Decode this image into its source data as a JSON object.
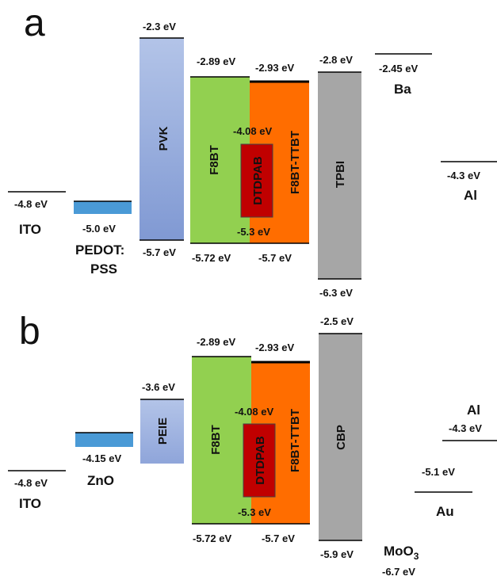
{
  "panels": [
    {
      "letter": "a",
      "levels": [
        {
          "id": "ito-wf",
          "value": "-4.8 eV"
        },
        {
          "id": "al-wf",
          "value": "-4.3 eV"
        },
        {
          "id": "ba-wf",
          "value": "-2.45 eV"
        }
      ],
      "materials": [
        {
          "id": "ito",
          "label": "ITO"
        },
        {
          "id": "pedot",
          "label_lines": [
            "PEDOT:",
            "PSS"
          ],
          "level": "-5.0 eV"
        },
        {
          "id": "pvk",
          "label": "PVK",
          "lumo": "-2.3 eV",
          "homo": "-5.7 eV"
        },
        {
          "id": "f8bt",
          "label": "F8BT",
          "lumo": "-2.89 eV",
          "homo": "-5.72 eV"
        },
        {
          "id": "f8bt-ttbt",
          "label": "F8BT-TTBT",
          "lumo": "-2.93 eV",
          "homo": "-5.7 eV"
        },
        {
          "id": "dtdpab",
          "label": "DTDPAB",
          "lumo": "-4.08 eV",
          "homo": "-5.3 eV"
        },
        {
          "id": "tpbi",
          "label": "TPBI",
          "lumo": "-2.8 eV",
          "homo": "-6.3 eV"
        },
        {
          "id": "ba",
          "label": "Ba"
        },
        {
          "id": "al",
          "label": "Al"
        }
      ]
    },
    {
      "letter": "b",
      "levels": [
        {
          "id": "ito-wf",
          "value": "-4.8 eV"
        },
        {
          "id": "al-wf",
          "value": "-4.3 eV"
        },
        {
          "id": "au-wf",
          "value": "-5.1 eV"
        },
        {
          "id": "moo3-level",
          "value": "-6.7 eV"
        }
      ],
      "materials": [
        {
          "id": "ito",
          "label": "ITO"
        },
        {
          "id": "zno",
          "label": "ZnO",
          "level": "-4.15 eV"
        },
        {
          "id": "peie",
          "label": "PEIE",
          "lumo": "-3.6 eV"
        },
        {
          "id": "f8bt",
          "label": "F8BT",
          "lumo": "-2.89 eV",
          "homo": "-5.72 eV"
        },
        {
          "id": "f8bt-ttbt",
          "label": "F8BT-TTBT",
          "lumo": "-2.93 eV",
          "homo": "-5.7 eV"
        },
        {
          "id": "dtdpab",
          "label": "DTDPAB",
          "lumo": "-4.08 eV",
          "homo": "-5.3 eV"
        },
        {
          "id": "cbp",
          "label": "CBP",
          "lumo": "-2.5 eV",
          "homo": "-5.9 eV"
        },
        {
          "id": "moo3",
          "label": "MoO",
          "label_sub": "3"
        },
        {
          "id": "au",
          "label": "Au"
        },
        {
          "id": "al",
          "label": "Al"
        }
      ]
    }
  ],
  "colors": {
    "pedot": "#4a9ad6",
    "pvk_top": "#b3c4e8",
    "pvk_bottom": "#8099d3",
    "f8bt": "#92d050",
    "f8bt_ttbt": "#ff6d00",
    "dtdpab": "#c00000",
    "gray_layer": "#a6a6a6"
  }
}
